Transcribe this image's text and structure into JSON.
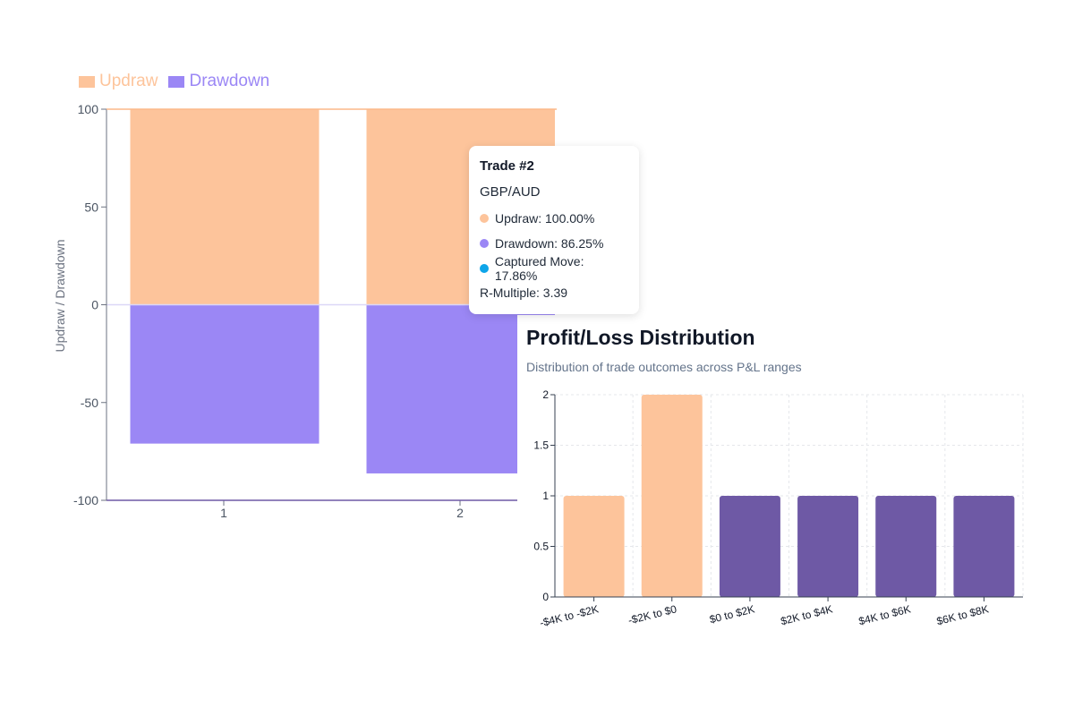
{
  "legend": {
    "updraw_label": "Updraw",
    "drawdown_label": "Drawdown"
  },
  "tooltip": {
    "title": "Trade #2",
    "pair": "GBP/AUD",
    "updraw": "Updraw: 100.00%",
    "drawdown": "Drawdown: 86.25%",
    "captured": "Captured Move: 17.86%",
    "r_multiple": "R-Multiple: 3.39"
  },
  "pl_panel": {
    "title": "Profit/Loss Distribution",
    "subtitle": "Distribution of trade outcomes across P&L ranges"
  },
  "colors": {
    "updraw": "#fdc49b",
    "drawdown": "#9b87f5",
    "captured": "#0ea5e9",
    "loss_bar": "#fdc49b",
    "profit_bar": "#6e59a5",
    "axis_text": "#4b5563"
  },
  "chart_data": [
    {
      "type": "bar",
      "categories": [
        "1",
        "2"
      ],
      "series": [
        {
          "name": "Updraw",
          "values": [
            100,
            100
          ]
        },
        {
          "name": "Drawdown",
          "values": [
            -71,
            -86.25
          ]
        }
      ],
      "ylabel": "Updraw / Drawdown",
      "xlabel": "",
      "ylim": [
        -100,
        100
      ],
      "yticks": [
        100,
        50,
        0,
        -50,
        -100
      ],
      "yticklabels": [
        "100",
        "50",
        "0",
        "-50",
        "-100"
      ],
      "legend": "top-left",
      "grid": false
    },
    {
      "type": "bar",
      "title": "Profit/Loss Distribution",
      "subtitle": "Distribution of trade outcomes across P&L ranges",
      "categories": [
        "-$4K to -$2K",
        "-$2K to $0",
        "$0 to $2K",
        "$2K to $4K",
        "$4K to $6K",
        "$6K to $8K"
      ],
      "values": [
        1,
        2,
        1,
        1,
        1,
        1
      ],
      "ylim": [
        0,
        2
      ],
      "yticks": [
        0,
        0.5,
        1,
        1.5,
        2
      ],
      "yticklabels": [
        "0",
        "0.5",
        "1",
        "1.5",
        "2"
      ],
      "grid": true
    }
  ]
}
